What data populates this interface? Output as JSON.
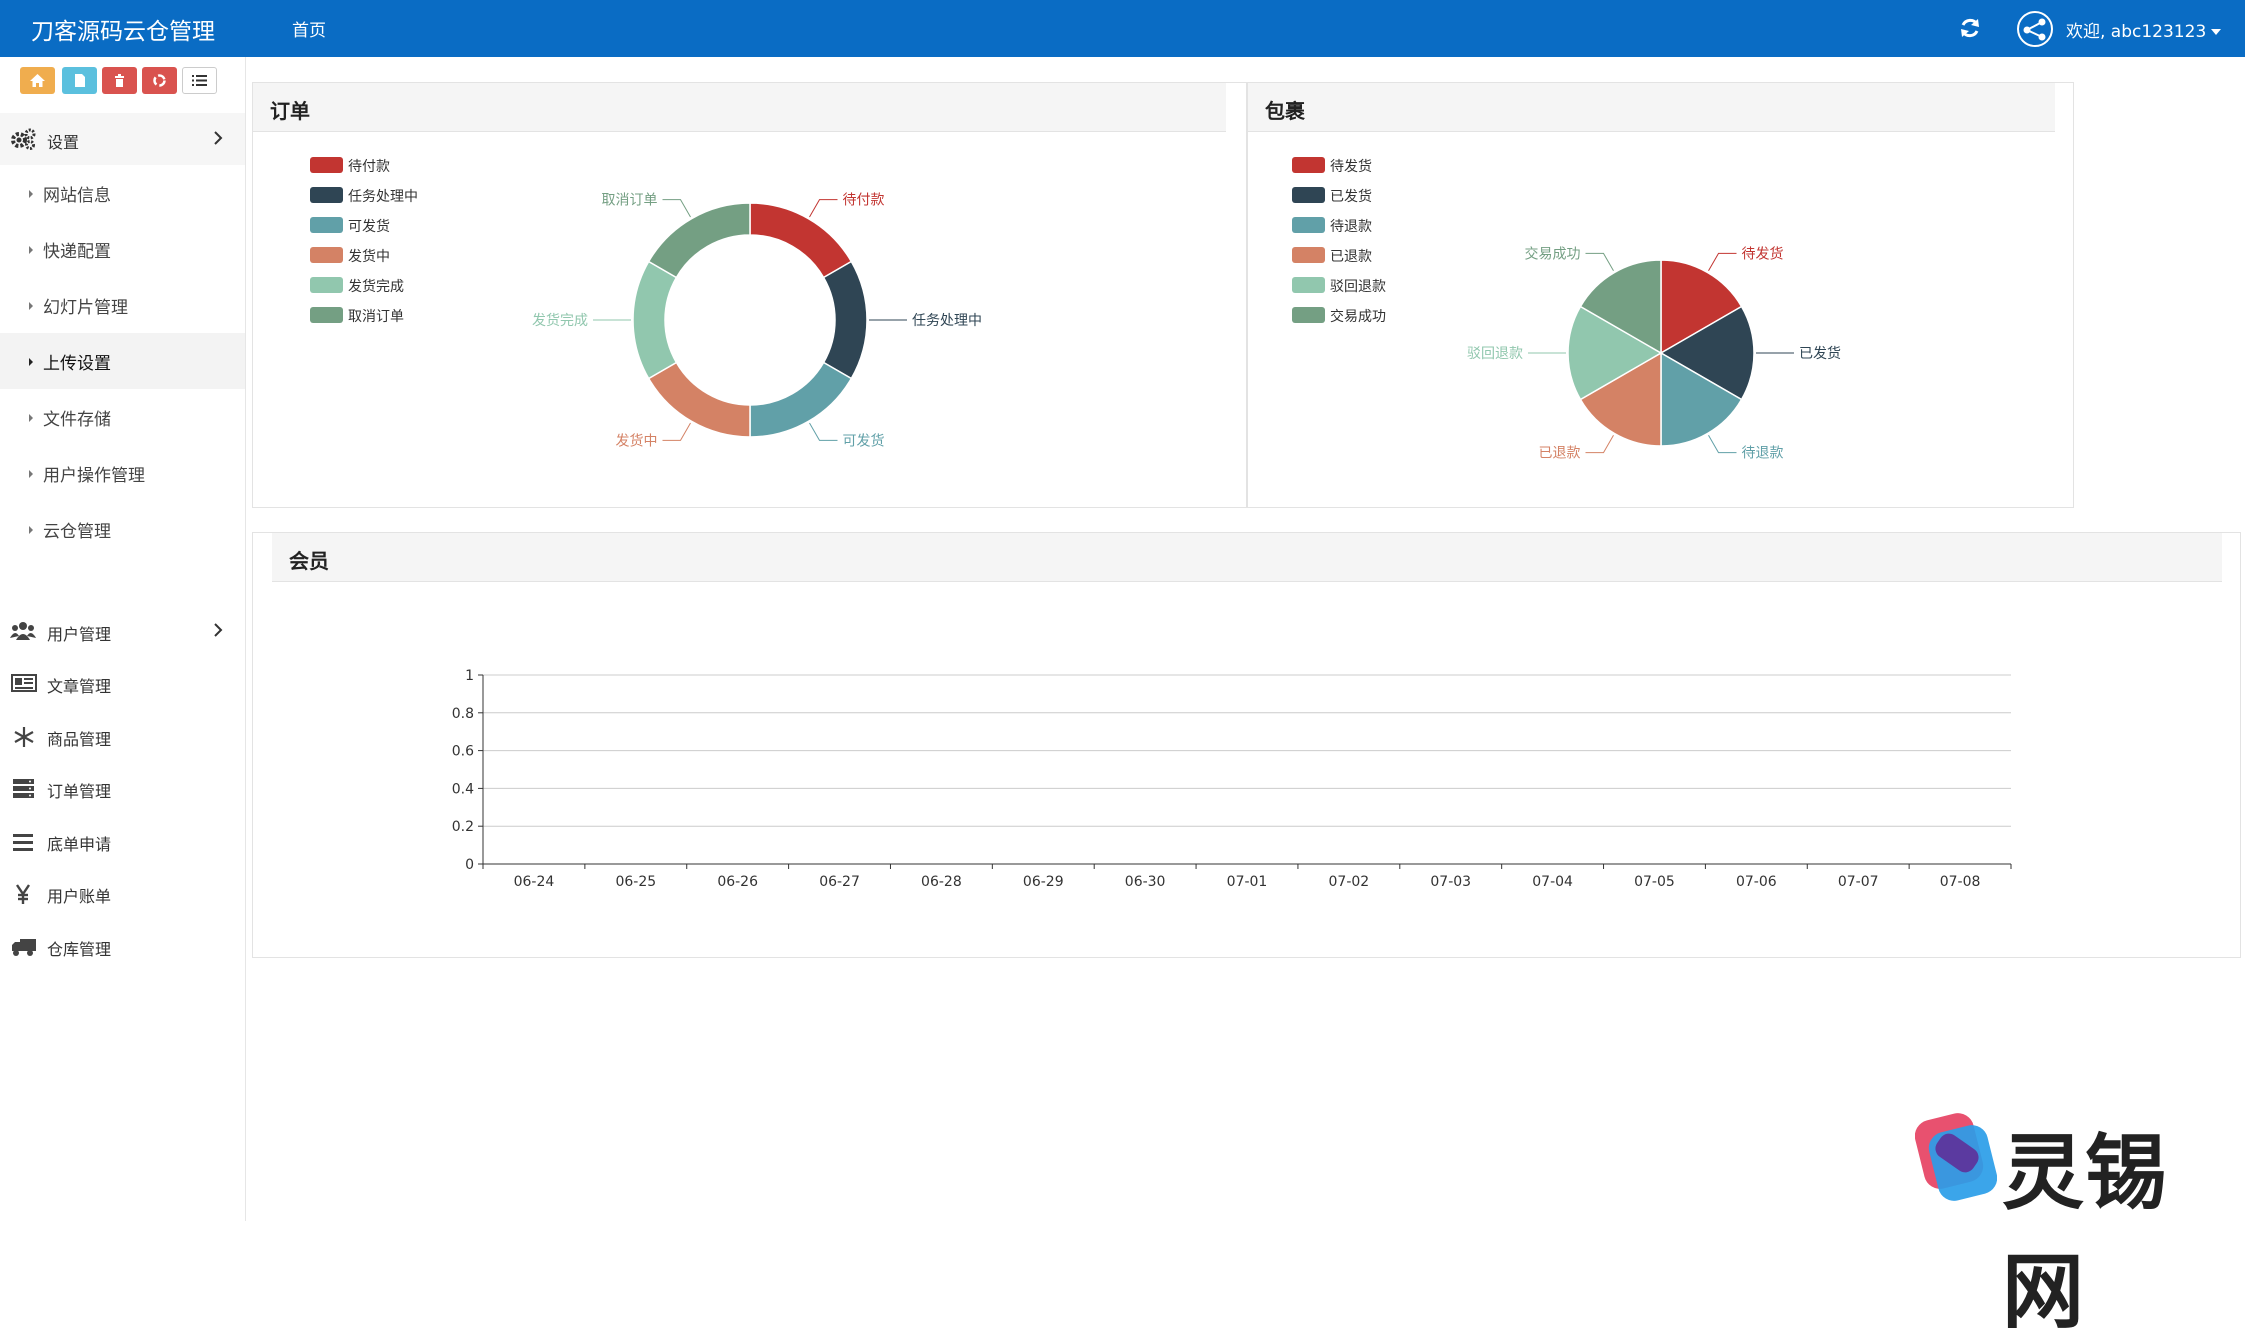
{
  "header": {
    "brand": "刀客源码云仓管理",
    "nav_home": "首页",
    "welcome": "欢迎, abc123123",
    "icons": [
      "refresh-icon",
      "user-avatar-icon"
    ],
    "bg_color": "#0a6cc4"
  },
  "shortcuts": [
    {
      "name": "home-shortcut",
      "icon": "home-icon",
      "color": "#f0ad4e"
    },
    {
      "name": "page-shortcut",
      "icon": "file-icon",
      "color": "#5bc0de"
    },
    {
      "name": "delete-shortcut",
      "icon": "trash-icon",
      "color": "#d9534f"
    },
    {
      "name": "recycle-shortcut",
      "icon": "recycle-icon",
      "color": "#d9534f"
    },
    {
      "name": "list-shortcut",
      "icon": "list-icon",
      "color": "#ffffff"
    }
  ],
  "sidebar": {
    "settings_label": "设置",
    "settings_items": [
      {
        "label": "网站信息",
        "active": false
      },
      {
        "label": "快递配置",
        "active": false
      },
      {
        "label": "幻灯片管理",
        "active": false
      },
      {
        "label": "上传设置",
        "active": true
      },
      {
        "label": "文件存储",
        "active": false
      },
      {
        "label": "用户操作管理",
        "active": false
      },
      {
        "label": "云仓管理",
        "active": false
      }
    ],
    "user_mgmt_label": "用户管理",
    "items": [
      {
        "label": "文章管理",
        "icon": "newspaper-icon"
      },
      {
        "label": "商品管理",
        "icon": "snowflake-icon"
      },
      {
        "label": "订单管理",
        "icon": "server-icon"
      },
      {
        "label": "底单申请",
        "icon": "list-icon"
      },
      {
        "label": "用户账单",
        "icon": "yen-icon"
      },
      {
        "label": "仓库管理",
        "icon": "truck-icon"
      }
    ]
  },
  "panels": {
    "orders_title": "订单",
    "packages_title": "包裹",
    "members_title": "会员"
  },
  "chart_data": [
    {
      "type": "pie",
      "variant": "donut",
      "title": "订单",
      "legend_position": "top-left",
      "labels": [
        "待付款",
        "任务处理中",
        "可发货",
        "发货中",
        "发货完成",
        "取消订单"
      ],
      "values": [
        1,
        1,
        1,
        1,
        1,
        1
      ],
      "colors": [
        "#c23531",
        "#2f4554",
        "#61a0a8",
        "#d48265",
        "#91c7ae",
        "#749f83"
      ]
    },
    {
      "type": "pie",
      "title": "包裹",
      "legend_position": "top-left",
      "labels": [
        "待发货",
        "已发货",
        "待退款",
        "已退款",
        "驳回退款",
        "交易成功"
      ],
      "values": [
        1,
        1,
        1,
        1,
        1,
        1
      ],
      "colors": [
        "#c23531",
        "#2f4554",
        "#61a0a8",
        "#d48265",
        "#91c7ae",
        "#749f83"
      ]
    },
    {
      "type": "line",
      "title": "会员",
      "categories": [
        "06-24",
        "06-25",
        "06-26",
        "06-27",
        "06-28",
        "06-29",
        "06-30",
        "07-01",
        "07-02",
        "07-03",
        "07-04",
        "07-05",
        "07-06",
        "07-07",
        "07-08"
      ],
      "series": [
        {
          "values": [
            0,
            0,
            0,
            0,
            0,
            0,
            0,
            0,
            0,
            0,
            0,
            0,
            0,
            0,
            0
          ]
        }
      ],
      "ylim": [
        0,
        1
      ],
      "yticks": [
        "0",
        "0.2",
        "0.4",
        "0.6",
        "0.8",
        "1"
      ],
      "grid": true
    }
  ],
  "watermark": {
    "text": "灵锡网"
  }
}
